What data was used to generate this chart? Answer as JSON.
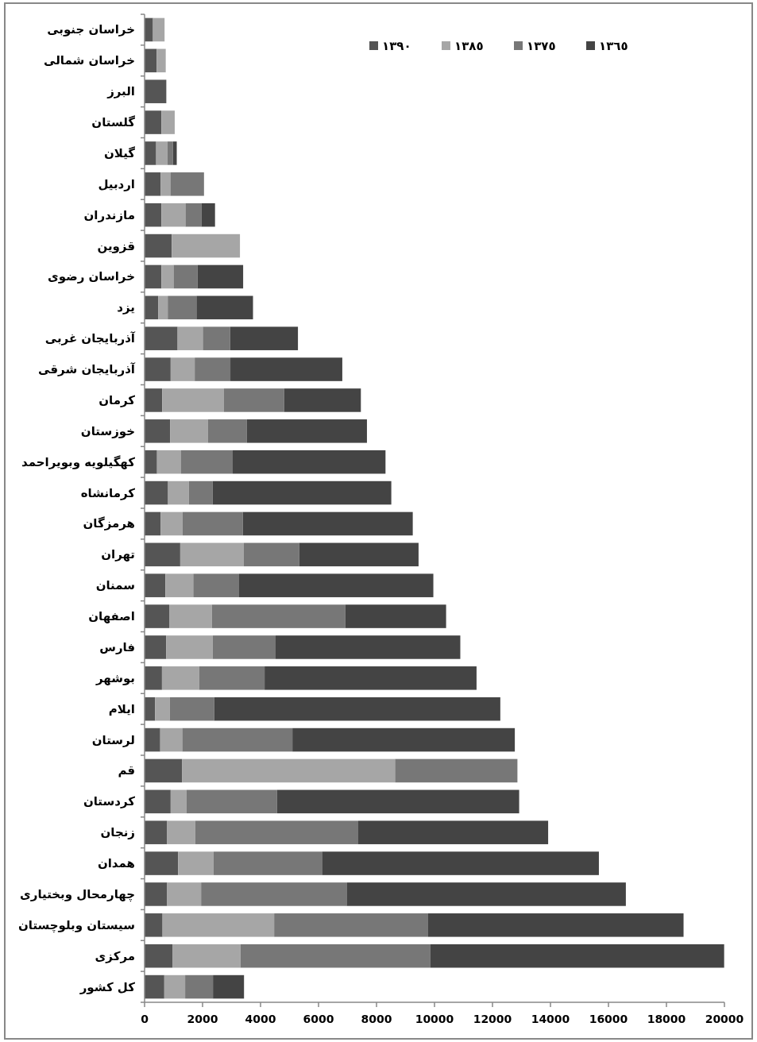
{
  "chart_data": {
    "type": "bar",
    "orientation": "horizontal",
    "stacked": true,
    "categories": [
      "خراسان جنوبی",
      "خراسان شمالی",
      "البرز",
      "گلستان",
      "گیلان",
      "اردبیل",
      "مازندران",
      "قزوین",
      "خراسان رضوی",
      "یزد",
      "آذربایجان غربی",
      "آذربایجان شرقی",
      "کرمان",
      "خوزستان",
      "کهگیلویه وبویراحمد",
      "کرمانشاه",
      "هرمزگان",
      "تهران",
      "سمنان",
      "اصفهان",
      "فارس",
      "بوشهر",
      "ایلام",
      "لرستان",
      "قم",
      "کردستان",
      "زنجان",
      "همدان",
      "چهارمحال وبختیاری",
      "سیستان وبلوچستان",
      "مرکزی",
      "کل کشور"
    ],
    "series": [
      {
        "name": "١٣٩٠",
        "color": "#555555",
        "values": [
          290,
          420,
          750,
          580,
          400,
          560,
          580,
          940,
          580,
          470,
          1140,
          900,
          610,
          880,
          430,
          810,
          550,
          1230,
          720,
          850,
          750,
          600,
          360,
          540,
          1290,
          900,
          780,
          1160,
          780,
          620,
          960,
          680
        ]
      },
      {
        "name": "١٣٨٥",
        "color": "#a6a6a6",
        "values": [
          400,
          310,
          null,
          460,
          390,
          330,
          830,
          2350,
          420,
          330,
          870,
          830,
          2120,
          1310,
          830,
          720,
          760,
          2190,
          960,
          1470,
          1600,
          1280,
          510,
          760,
          7350,
          550,
          970,
          1220,
          1170,
          3850,
          2350,
          720
        ]
      },
      {
        "name": "١٣٧٥",
        "color": "#777777",
        "values": [
          null,
          null,
          null,
          null,
          190,
          1160,
          550,
          null,
          830,
          990,
          940,
          1230,
          2080,
          1340,
          1780,
          820,
          2080,
          1910,
          1580,
          4600,
          2170,
          2260,
          1530,
          3800,
          4220,
          3120,
          5620,
          3740,
          5020,
          5310,
          6550,
          960
        ]
      },
      {
        "name": "١٣٦٥",
        "color": "#444444",
        "values": [
          null,
          null,
          null,
          null,
          130,
          null,
          470,
          null,
          1570,
          1950,
          2340,
          3860,
          2650,
          4140,
          5270,
          6160,
          5860,
          4120,
          6700,
          3480,
          6370,
          7310,
          9870,
          7670,
          null,
          8350,
          6550,
          9550,
          9630,
          8810,
          10130,
          1070
        ]
      }
    ],
    "xlim": [
      0,
      20000
    ],
    "xticks": [
      0,
      2000,
      4000,
      6000,
      8000,
      10000,
      12000,
      14000,
      16000,
      18000,
      20000
    ],
    "grid": false,
    "legend": "top right"
  }
}
